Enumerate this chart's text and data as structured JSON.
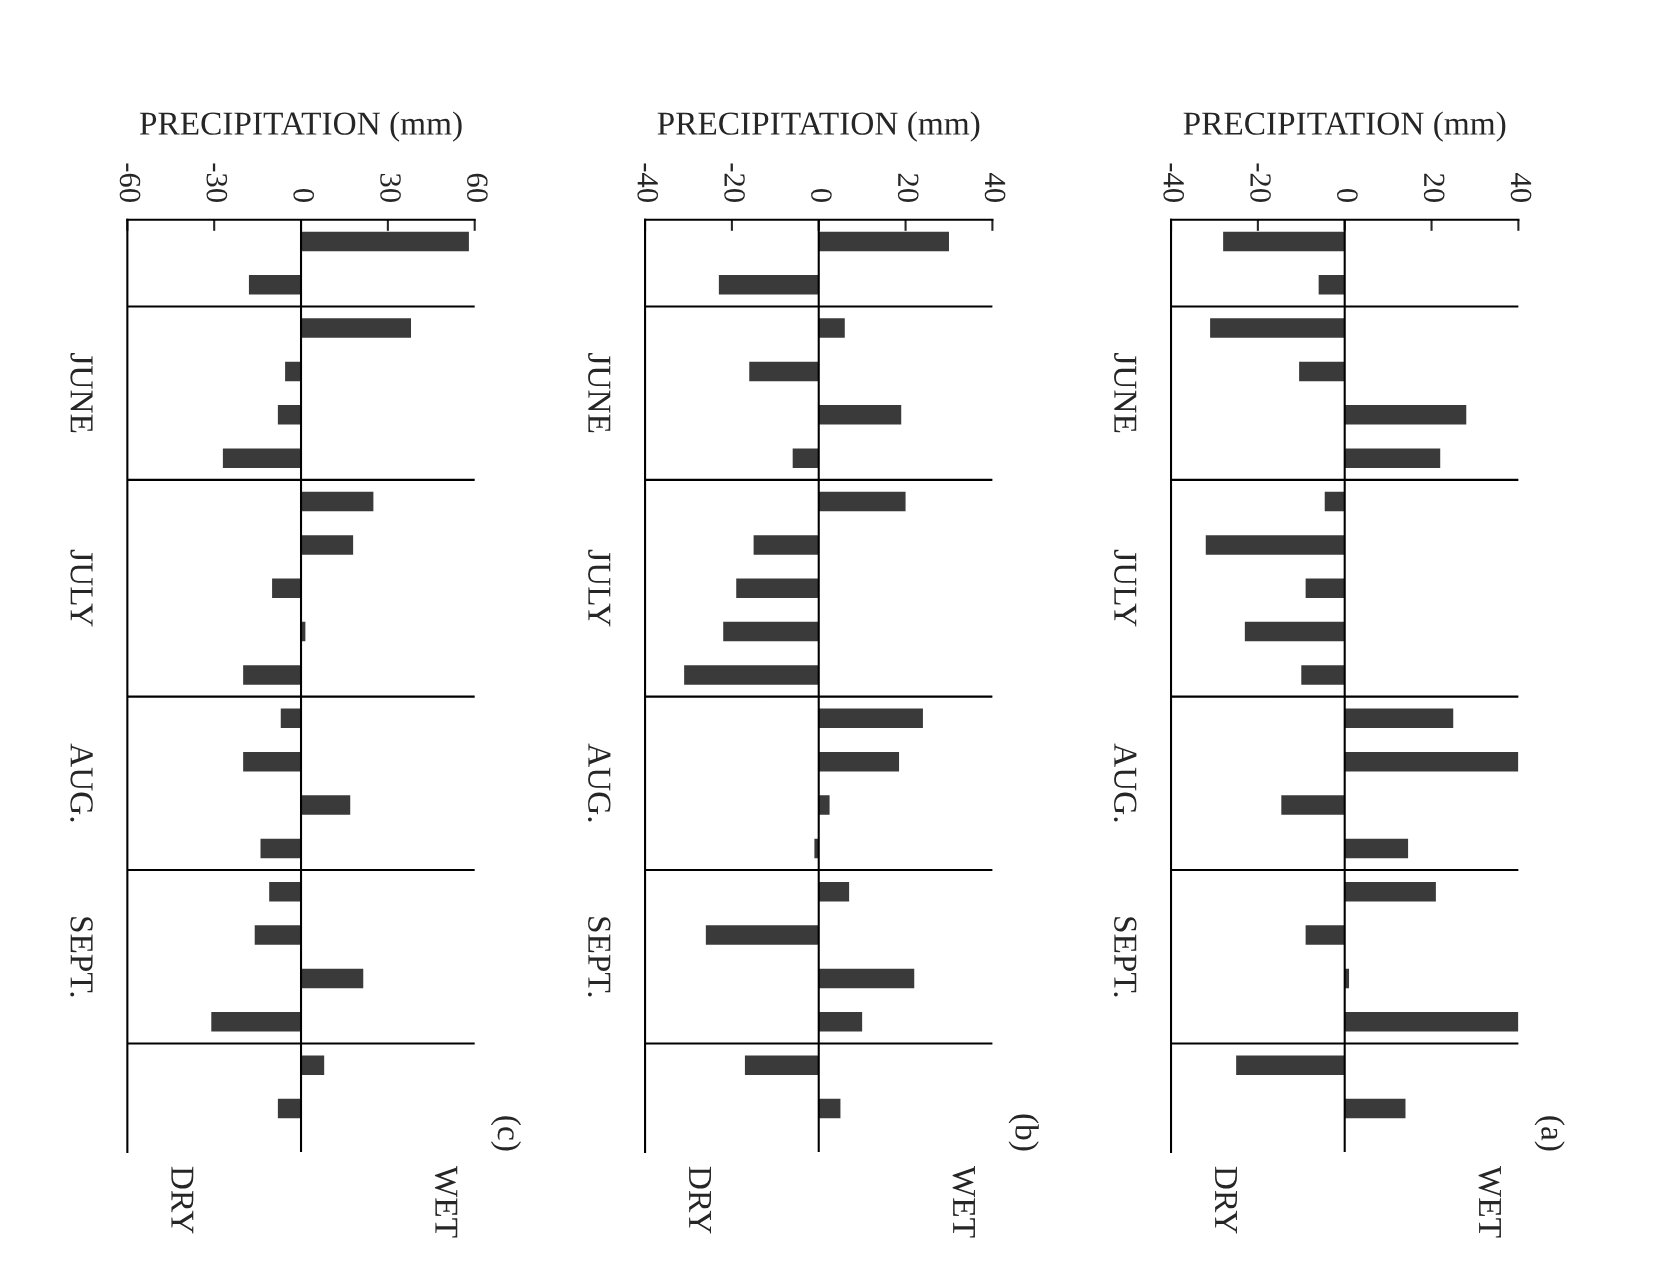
{
  "chart_data": [
    {
      "type": "bar",
      "orientation": "horizontal",
      "title": "(a)",
      "xlabel": "PRECIPITATION (mm)",
      "categories": [
        null,
        null,
        null,
        null,
        null,
        null,
        null,
        null,
        null,
        null,
        null,
        null,
        null,
        null,
        null,
        null,
        null,
        null,
        null,
        null,
        null
      ],
      "values": [
        -28,
        -6,
        -31,
        -10.5,
        28,
        22,
        -4.6,
        -32,
        -9,
        -23,
        -10,
        25,
        40,
        -14.6,
        14.6,
        21,
        -9,
        1,
        40,
        -25,
        14
      ],
      "color": "#3a3a3a",
      "xlim": [
        -40,
        40
      ],
      "xticks": [
        -40,
        -20,
        0,
        20,
        40
      ],
      "annotations": [
        "JUNE",
        "JULY",
        "AUG.",
        "SEPT.",
        "WET",
        "DRY"
      ]
    },
    {
      "type": "bar",
      "orientation": "horizontal",
      "title": "(b)",
      "xlabel": "PRECIPITATION (mm)",
      "categories": [
        null,
        null,
        null,
        null,
        null,
        null,
        null,
        null,
        null,
        null,
        null,
        null,
        null,
        null,
        null,
        null,
        null,
        null,
        null,
        null,
        null
      ],
      "values": [
        30,
        -23,
        6,
        -16,
        19,
        -6,
        20,
        -15,
        -19,
        -22,
        -31,
        24,
        18.5,
        2.5,
        -1,
        7,
        -26,
        22,
        10,
        -17,
        5
      ],
      "color": "#3a3a3a",
      "xlim": [
        -40,
        40
      ],
      "xticks": [
        -40,
        -20,
        0,
        20,
        40
      ],
      "annotations": [
        "JUNE",
        "JULY",
        "AUG.",
        "SEPT.",
        "WET",
        "DRY"
      ]
    },
    {
      "type": "bar",
      "orientation": "horizontal",
      "title": "(c)",
      "xlabel": "PRECIPITATION (mm)",
      "categories": [
        null,
        null,
        null,
        null,
        null,
        null,
        null,
        null,
        null,
        null,
        null,
        null,
        null,
        null,
        null,
        null,
        null,
        null,
        null,
        null,
        null
      ],
      "values": [
        58,
        -18,
        38,
        -5.5,
        -8,
        -27,
        25,
        18,
        -10,
        1.5,
        -20,
        -7,
        -20,
        17,
        -14,
        -11,
        -16,
        21.5,
        -31,
        8,
        -8
      ],
      "color": "#3a3a3a",
      "xlim": [
        -60,
        60
      ],
      "xticks": [
        -60,
        -30,
        0,
        30,
        60
      ],
      "annotations": [
        "JUNE",
        "JULY",
        "AUG.",
        "SEPT.",
        "WET",
        "DRY"
      ]
    }
  ]
}
